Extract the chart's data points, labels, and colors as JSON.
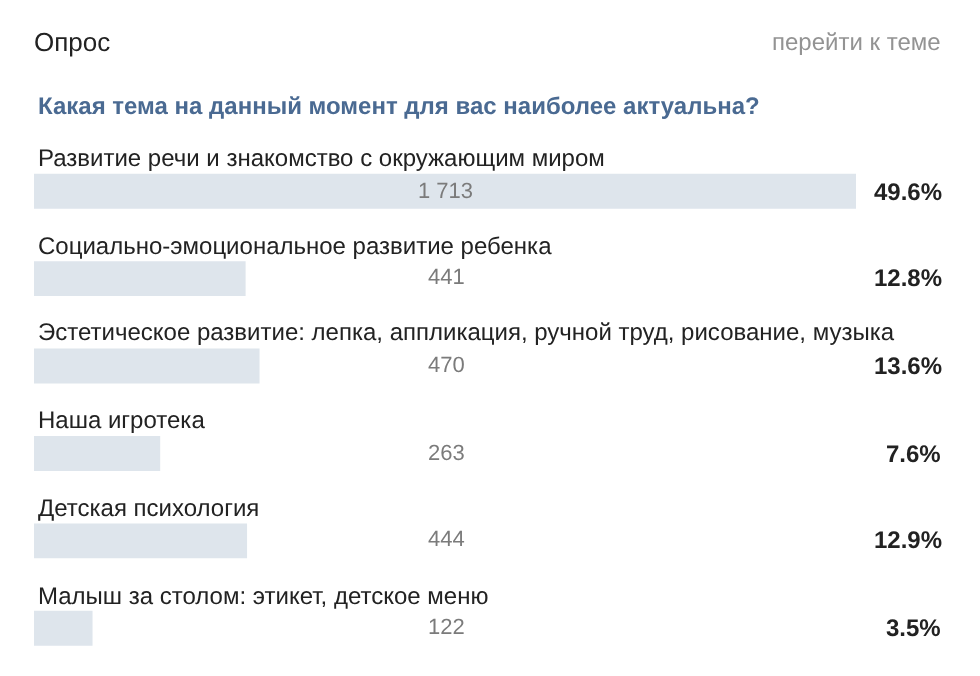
{
  "chart_data": {
    "type": "bar",
    "orientation": "horizontal",
    "title": "Опрос",
    "subtitle": "Какая тема на данный момент для вас наиболее актуальна?",
    "categories": [
      "Развитие речи и знакомство с окружающим миром",
      "Социально-эмоциональное развитие ребенка",
      "Эстетическое развитие: лепка, аппликация, ручной труд, рисование, музыка",
      "Наша игротека",
      "Детская психология",
      "Малыш за столом: этикет, детское меню"
    ],
    "values": [
      1713,
      441,
      470,
      263,
      444,
      122
    ],
    "value_labels": [
      "1 713",
      "441",
      "470",
      "263",
      "444",
      "122"
    ],
    "color": "#dee5ec",
    "xlim": [
      0,
      1713
    ],
    "annotations": [
      "перейти к теме",
      "49.6%",
      "12.8%",
      "13.6%",
      "7.6%",
      "12.9%",
      "3.5%"
    ]
  }
}
